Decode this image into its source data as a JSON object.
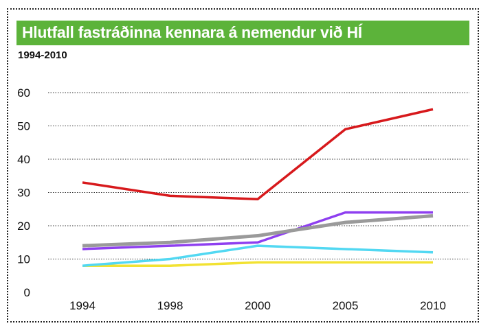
{
  "title": "Hlutfall fastráðinna kennara á nemendur við HÍ",
  "subtitle": "1994-2010",
  "chart_data": {
    "type": "line",
    "categories": [
      "1994",
      "1998",
      "2000",
      "2005",
      "2010"
    ],
    "ylim": [
      0,
      60
    ],
    "yticks": [
      "0",
      "10",
      "20",
      "30",
      "40",
      "50",
      "60"
    ],
    "grid": true,
    "series": [
      {
        "color": "#d7191c",
        "values": [
          33,
          29,
          28,
          49,
          55
        ]
      },
      {
        "color": "#9a9a9a",
        "values": [
          14,
          15,
          17,
          21,
          23
        ]
      },
      {
        "color": "#8e3ff0",
        "values": [
          13,
          14,
          15,
          24,
          24
        ]
      },
      {
        "color": "#52d8f2",
        "values": [
          8,
          10,
          14,
          13,
          12
        ]
      },
      {
        "color": "#f2e232",
        "values": [
          8,
          8,
          9,
          9,
          9
        ]
      }
    ]
  }
}
